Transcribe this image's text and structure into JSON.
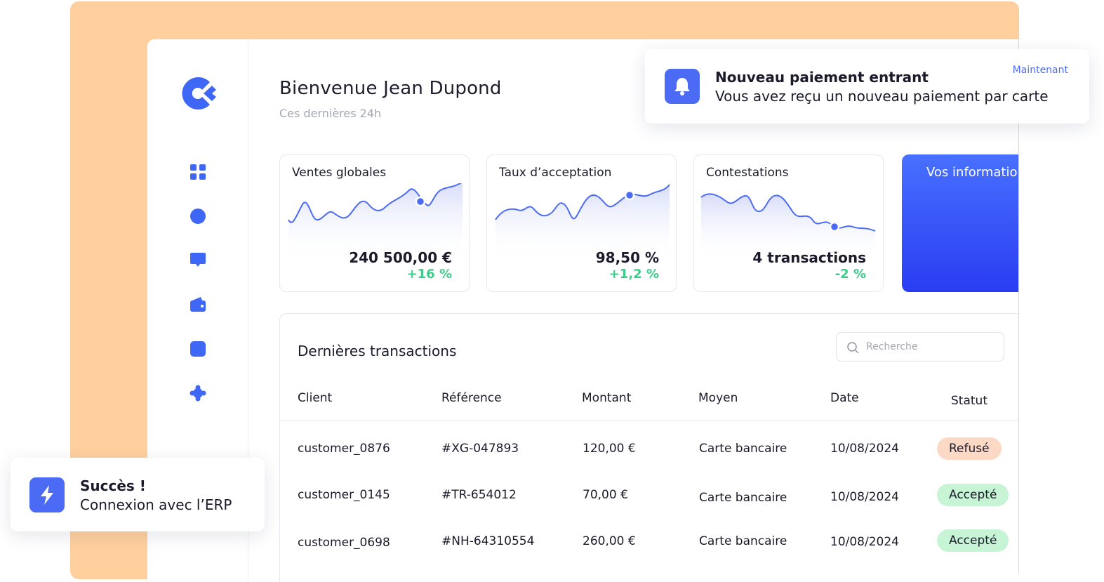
{
  "colors": {
    "accent": "#4b6bf5",
    "peach": "#ffd09e",
    "positive": "#39cf8a"
  },
  "sidebar": {
    "logo_icon": "brand-logo-icon",
    "items": [
      {
        "icon": "grid-icon"
      },
      {
        "icon": "circle-icon"
      },
      {
        "icon": "chat-icon"
      },
      {
        "icon": "wallet-icon"
      },
      {
        "icon": "square-icon"
      },
      {
        "icon": "puzzle-icon"
      }
    ]
  },
  "header": {
    "title": "Bienvenue Jean Dupond",
    "subtitle": "Ces dernières 24h"
  },
  "cards": [
    {
      "title": "Ventes globales",
      "value": "240 500,00 €",
      "delta": "+16 %"
    },
    {
      "title": "Taux d’acceptation",
      "value": "98,50 %",
      "delta": "+1,2 %"
    },
    {
      "title": "Contestations",
      "value": "4 transactions",
      "delta": "-2 %"
    }
  ],
  "info_card": {
    "title": "Vos informatio"
  },
  "transactions": {
    "title": "Dernières transactions",
    "search_placeholder": "Recherche",
    "columns": [
      "Client",
      "Référence",
      "Montant",
      "Moyen",
      "Date",
      "Statut"
    ],
    "rows": [
      {
        "client": "customer_0876",
        "reference": "#XG-047893",
        "amount": "120,00 €",
        "method": "Carte bancaire",
        "date": "10/08/2024",
        "status": "Refusé"
      },
      {
        "client": "customer_0145",
        "reference": "#TR-654012",
        "amount": "70,00 €",
        "method": "Carte bancaire",
        "date": "10/08/2024",
        "status": "Accepté"
      },
      {
        "client": "customer_0698",
        "reference": "#NH-64310554",
        "amount": "260,00 €",
        "method": "Carte bancaire",
        "date": "10/08/2024",
        "status": "Accepté"
      }
    ]
  },
  "notification": {
    "title": "Nouveau paiement entrant",
    "text": "Vous avez reçu un nouveau paiement par carte",
    "time": "Maintenant",
    "icon": "bell-icon"
  },
  "success_toast": {
    "title": "Succès !",
    "text": "Connexion avec l’ERP",
    "icon": "lightning-icon"
  }
}
